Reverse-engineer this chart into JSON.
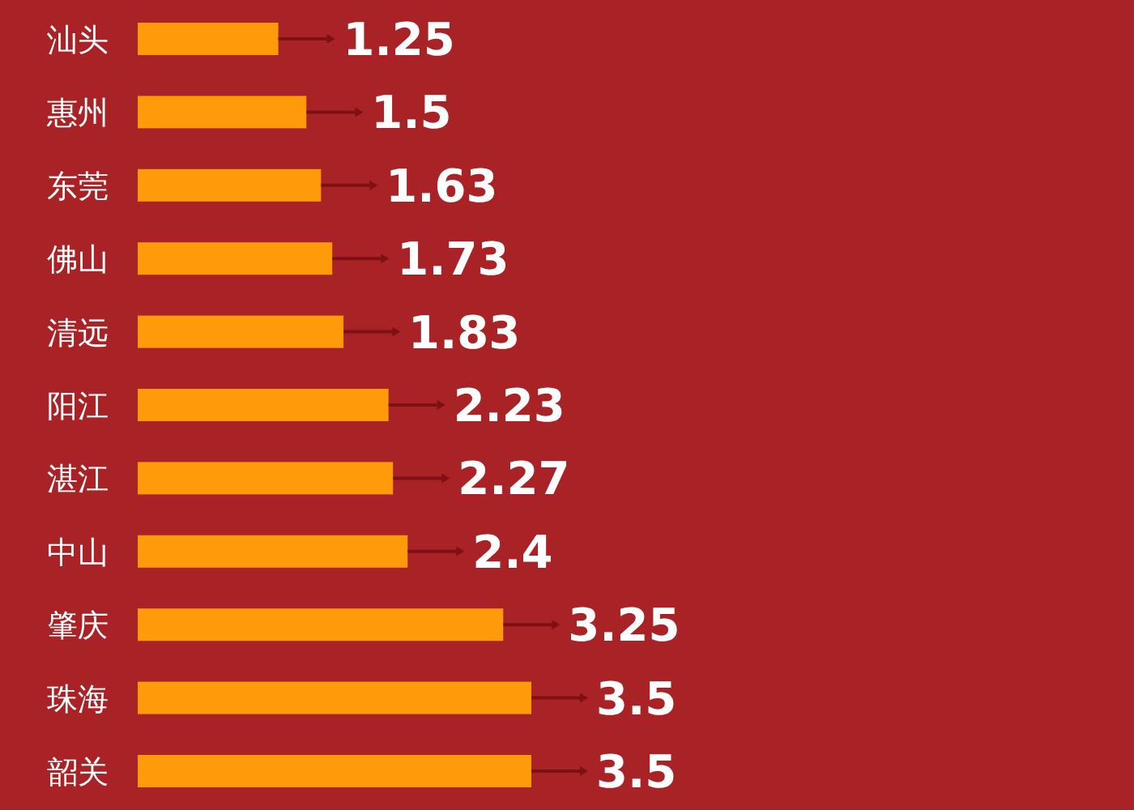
{
  "chart_data": {
    "type": "bar",
    "orientation": "horizontal",
    "data_labels": true,
    "categories": [
      "汕头",
      "惠州",
      "东莞",
      "佛山",
      "清远",
      "阳江",
      "湛江",
      "中山",
      "肇庆",
      "珠海",
      "韶关"
    ],
    "values": [
      1.25,
      1.5,
      1.63,
      1.73,
      1.83,
      2.23,
      2.27,
      2.4,
      3.25,
      3.5,
      3.5
    ],
    "color": "#ff9a0a"
  }
}
